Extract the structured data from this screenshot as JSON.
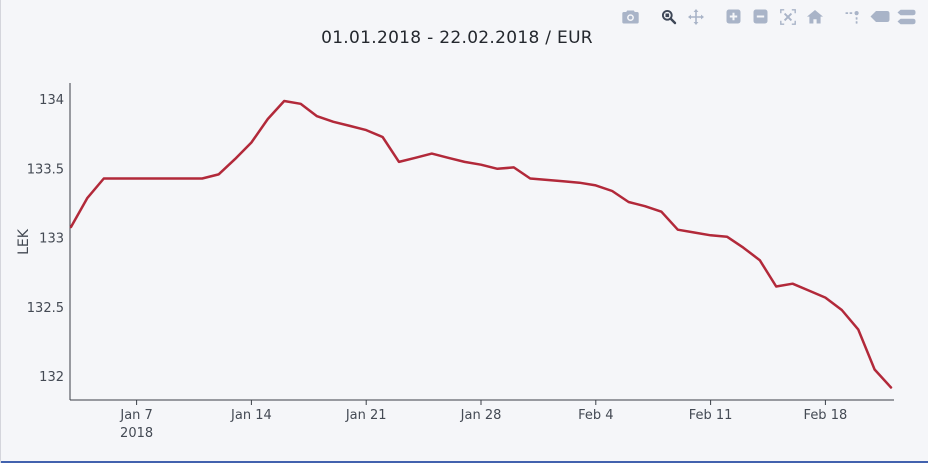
{
  "page": {
    "background_color": "#f5f6f9",
    "bottom_bar_color": "#4262ae"
  },
  "title": "01.01.2018 - 22.02.2018 / EUR",
  "toolbar": {
    "inactive_color": "#a9b4c8",
    "active_color": "#3e4757",
    "active_tool": "zoom",
    "buttons": [
      {
        "id": "download-image",
        "icon": "camera-icon"
      },
      {
        "id": "zoom",
        "icon": "zoom-icon"
      },
      {
        "id": "pan",
        "icon": "pan-icon"
      },
      {
        "id": "zoom-in",
        "icon": "zoom-in-icon"
      },
      {
        "id": "zoom-out",
        "icon": "zoom-out-icon"
      },
      {
        "id": "autoscale",
        "icon": "autoscale-icon"
      },
      {
        "id": "reset-axes",
        "icon": "home-icon"
      },
      {
        "id": "toggle-spikelines",
        "icon": "spikelines-icon"
      },
      {
        "id": "hover-closest",
        "icon": "hover-closest-icon"
      },
      {
        "id": "hover-compare",
        "icon": "hover-compare-icon"
      }
    ]
  },
  "chart_data": {
    "type": "line",
    "title": "01.01.2018 - 22.02.2018 / EUR",
    "xlabel": "",
    "ylabel": "LEK",
    "series_name": "EUR",
    "line_color": "#b2293a",
    "grid": false,
    "legend": "none",
    "ylim": [
      131.83,
      134.12
    ],
    "y_ticks": [
      "132",
      "132.5",
      "133",
      "133.5",
      "134"
    ],
    "x_tick_labels": [
      {
        "index": 4,
        "label": "Jan 7",
        "sublabel": "2018"
      },
      {
        "index": 11,
        "label": "Jan 14",
        "sublabel": ""
      },
      {
        "index": 18,
        "label": "Jan 21",
        "sublabel": ""
      },
      {
        "index": 25,
        "label": "Jan 28",
        "sublabel": ""
      },
      {
        "index": 32,
        "label": "Feb 4",
        "sublabel": ""
      },
      {
        "index": 39,
        "label": "Feb 11",
        "sublabel": ""
      },
      {
        "index": 46,
        "label": "Feb 18",
        "sublabel": ""
      }
    ],
    "x": [
      "Jan 3",
      "Jan 4",
      "Jan 5",
      "Jan 6",
      "Jan 7",
      "Jan 8",
      "Jan 9",
      "Jan 10",
      "Jan 11",
      "Jan 12",
      "Jan 13",
      "Jan 14",
      "Jan 15",
      "Jan 16",
      "Jan 17",
      "Jan 18",
      "Jan 19",
      "Jan 20",
      "Jan 21",
      "Jan 22",
      "Jan 23",
      "Jan 24",
      "Jan 25",
      "Jan 26",
      "Jan 27",
      "Jan 28",
      "Jan 29",
      "Jan 30",
      "Jan 31",
      "Feb 1",
      "Feb 2",
      "Feb 3",
      "Feb 4",
      "Feb 5",
      "Feb 6",
      "Feb 7",
      "Feb 8",
      "Feb 9",
      "Feb 10",
      "Feb 11",
      "Feb 12",
      "Feb 13",
      "Feb 14",
      "Feb 15",
      "Feb 16",
      "Feb 17",
      "Feb 18",
      "Feb 19",
      "Feb 20",
      "Feb 21",
      "Feb 22"
    ],
    "values": [
      133.08,
      133.29,
      133.43,
      133.43,
      133.43,
      133.43,
      133.43,
      133.43,
      133.43,
      133.46,
      133.57,
      133.69,
      133.86,
      133.99,
      133.97,
      133.88,
      133.84,
      133.81,
      133.78,
      133.73,
      133.55,
      133.58,
      133.61,
      133.58,
      133.55,
      133.53,
      133.5,
      133.51,
      133.43,
      133.42,
      133.41,
      133.4,
      133.38,
      133.34,
      133.26,
      133.23,
      133.19,
      133.06,
      133.04,
      133.02,
      133.01,
      132.93,
      132.84,
      132.65,
      132.67,
      132.62,
      132.57,
      132.48,
      132.34,
      132.05,
      131.92
    ]
  }
}
